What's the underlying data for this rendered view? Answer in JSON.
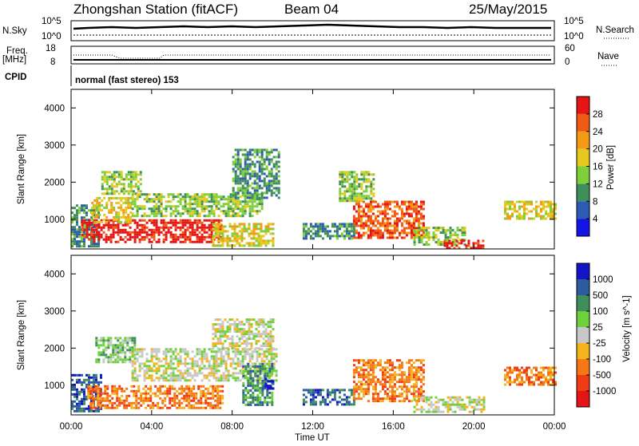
{
  "header": {
    "station": "Zhongshan Station (fitACF)",
    "beam": "Beam 04",
    "date": "25/May/2015"
  },
  "aux_panels": {
    "nsky_label": "N.Sky",
    "nsky_ticks": [
      "10^5",
      "10^0"
    ],
    "nsearch_label": "N.Search",
    "nsearch_ticks": [
      "10^5",
      "10^0"
    ],
    "freq_label": "Freq.",
    "freq_unit": "[MHz]",
    "freq_ticks": [
      "18",
      "8"
    ],
    "nave_label": "Nave",
    "nave_ticks": [
      "60",
      "0"
    ],
    "cpid_label": "CPID",
    "cpid_value": "normal (fast stereo) 153"
  },
  "colors": {
    "power": [
      "#1414e6",
      "#2d5bb4",
      "#3f8f5a",
      "#7fcf3a",
      "#e6c81e",
      "#f59a14",
      "#f05a14",
      "#e61414"
    ],
    "velocity": [
      "#1414c8",
      "#2d5ba0",
      "#3f8f5a",
      "#6ed23c",
      "#c8c8c8",
      "#f5b41e",
      "#f57814",
      "#f03c14",
      "#e61414"
    ]
  },
  "chart_data": [
    {
      "type": "heatmap",
      "name": "power",
      "ylabel": "Slant Range [km]",
      "xlim": [
        0,
        24
      ],
      "ylim": [
        200,
        4500
      ],
      "y_ticks": [
        "1000",
        "2000",
        "3000",
        "4000"
      ],
      "colorbar_label": "Power [dB]",
      "colorbar_ticks": [
        "4",
        "8",
        "12",
        "16",
        "20",
        "24",
        "28"
      ],
      "regions": [
        {
          "t0": 0.0,
          "t1": 1.4,
          "r0": 300,
          "r1": 1400,
          "level": 2
        },
        {
          "t0": 0.5,
          "t1": 7.5,
          "r0": 400,
          "r1": 1000,
          "level": 7
        },
        {
          "t0": 1.0,
          "t1": 3.0,
          "r0": 900,
          "r1": 1600,
          "level": 4
        },
        {
          "t0": 1.5,
          "t1": 3.5,
          "r0": 1700,
          "r1": 2300,
          "level": 3
        },
        {
          "t0": 3.0,
          "t1": 9.5,
          "r0": 1100,
          "r1": 1700,
          "level": 3
        },
        {
          "t0": 7.0,
          "t1": 10.0,
          "r0": 300,
          "r1": 900,
          "level": 4
        },
        {
          "t0": 8.0,
          "t1": 10.3,
          "r0": 1600,
          "r1": 2900,
          "level": 2
        },
        {
          "t0": 11.5,
          "t1": 14.0,
          "r0": 500,
          "r1": 900,
          "level": 2
        },
        {
          "t0": 13.3,
          "t1": 15.0,
          "r0": 1500,
          "r1": 2300,
          "level": 3
        },
        {
          "t0": 14.0,
          "t1": 17.5,
          "r0": 500,
          "r1": 1500,
          "level": 6
        },
        {
          "t0": 17.0,
          "t1": 19.5,
          "r0": 300,
          "r1": 800,
          "level": 3
        },
        {
          "t0": 18.5,
          "t1": 20.5,
          "r0": 250,
          "r1": 450,
          "level": 7
        },
        {
          "t0": 21.5,
          "t1": 24.0,
          "r0": 1000,
          "r1": 1500,
          "level": 4
        }
      ]
    },
    {
      "type": "heatmap",
      "name": "velocity",
      "ylabel": "Slant Range [km]",
      "xlabel": "Time UT",
      "x_ticks": [
        "00:00",
        "04:00",
        "08:00",
        "12:00",
        "16:00",
        "20:00",
        "00:00"
      ],
      "xlim": [
        0,
        24
      ],
      "ylim": [
        200,
        4500
      ],
      "y_ticks": [
        "1000",
        "2000",
        "3000",
        "4000"
      ],
      "colorbar_label": "Velocity [m s^-1]",
      "colorbar_ticks": [
        "1000",
        "500",
        "100",
        "25",
        "-25",
        "-100",
        "-500",
        "-1000"
      ],
      "regions": [
        {
          "t0": 0.0,
          "t1": 1.5,
          "r0": 300,
          "r1": 1300,
          "level": 1
        },
        {
          "t0": 0.8,
          "t1": 7.5,
          "r0": 400,
          "r1": 1000,
          "level": 6
        },
        {
          "t0": 1.2,
          "t1": 3.2,
          "r0": 1600,
          "r1": 2300,
          "level": 3
        },
        {
          "t0": 3.0,
          "t1": 10.2,
          "r0": 1100,
          "r1": 2000,
          "level": 4
        },
        {
          "t0": 7.0,
          "t1": 10.0,
          "r0": 2000,
          "r1": 2800,
          "level": 4
        },
        {
          "t0": 8.5,
          "t1": 10.0,
          "r0": 500,
          "r1": 1600,
          "level": 2
        },
        {
          "t0": 9.5,
          "t1": 10.0,
          "r0": 900,
          "r1": 1200,
          "level": 0
        },
        {
          "t0": 11.5,
          "t1": 14.0,
          "r0": 500,
          "r1": 900,
          "level": 1
        },
        {
          "t0": 14.0,
          "t1": 17.5,
          "r0": 600,
          "r1": 1700,
          "level": 6
        },
        {
          "t0": 17.0,
          "t1": 20.5,
          "r0": 250,
          "r1": 700,
          "level": 4
        },
        {
          "t0": 21.5,
          "t1": 24.0,
          "r0": 1000,
          "r1": 1500,
          "level": 6
        }
      ]
    }
  ]
}
